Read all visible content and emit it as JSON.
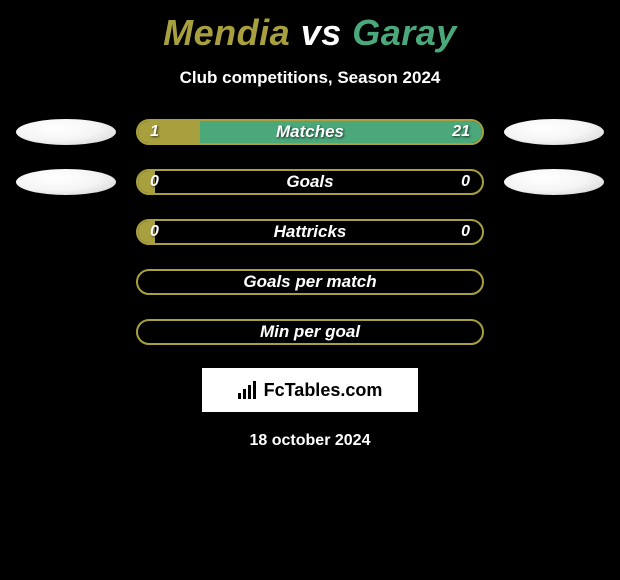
{
  "title": {
    "player1": "Mendia",
    "vs": "vs",
    "player2": "Garay",
    "player1_color": "#a8a03e",
    "vs_color": "#ffffff",
    "player2_color": "#4aa87a"
  },
  "subtitle": "Club competitions, Season 2024",
  "track_border_color": "#a8a03e",
  "left_fill_color": "#a8a03e",
  "right_fill_color": "#4aa87a",
  "rows": [
    {
      "label": "Matches",
      "left_value": "1",
      "right_value": "21",
      "left_pct": 18,
      "right_pct": 82,
      "show_avatars": true,
      "show_values": true
    },
    {
      "label": "Goals",
      "left_value": "0",
      "right_value": "0",
      "left_pct": 5,
      "right_pct": 0,
      "show_avatars": true,
      "show_values": true
    },
    {
      "label": "Hattricks",
      "left_value": "0",
      "right_value": "0",
      "left_pct": 5,
      "right_pct": 0,
      "show_avatars": false,
      "show_values": true
    },
    {
      "label": "Goals per match",
      "left_value": "",
      "right_value": "",
      "left_pct": 0,
      "right_pct": 0,
      "show_avatars": false,
      "show_values": false
    },
    {
      "label": "Min per goal",
      "left_value": "",
      "right_value": "",
      "left_pct": 0,
      "right_pct": 0,
      "show_avatars": false,
      "show_values": false
    }
  ],
  "logo_text": "FcTables.com",
  "date_text": "18 october 2024"
}
